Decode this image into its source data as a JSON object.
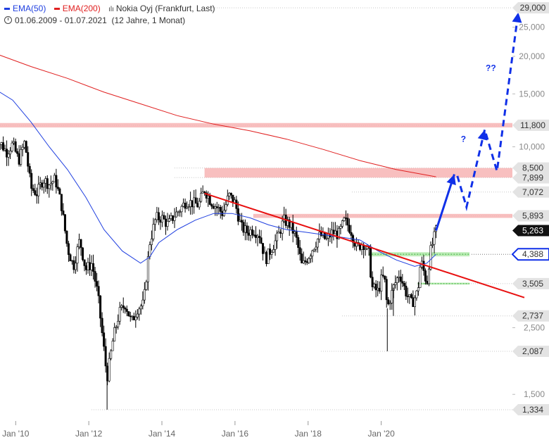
{
  "legend": {
    "ema50_label": "EMA(50)",
    "ema200_label": "EMA(200)",
    "title": "Nokia Oyj (Frankfurt, Last)",
    "range": "01.06.2009 - 01.07.2021",
    "duration": "(12 Jahre, 1 Monat)"
  },
  "colors": {
    "ema50": "#1f3fe0",
    "ema200": "#e02020",
    "resistance_zone": "#f7b4b4",
    "support_zone": "#a8e6a0",
    "trendline": "#e81010",
    "arrow": "#1030e8"
  },
  "chart_data": {
    "type": "candlestick",
    "title": "Nokia Oyj (Frankfurt, Last)",
    "y_scale": "log",
    "ylim": [
      1.25,
      29.5
    ],
    "xlim": [
      "2009-06",
      "2023-12"
    ],
    "x_ticks": [
      {
        "label": "Jan '10",
        "date": "2010-01"
      },
      {
        "label": "Jan '12",
        "date": "2012-01"
      },
      {
        "label": "Jan '14",
        "date": "2014-01"
      },
      {
        "label": "Jan '16",
        "date": "2016-01"
      },
      {
        "label": "Jan '18",
        "date": "2018-01"
      },
      {
        "label": "Jan '20",
        "date": "2020-01"
      }
    ],
    "y_ticks": [
      {
        "value": 25,
        "label": "25,000"
      },
      {
        "value": 20,
        "label": "20,000"
      },
      {
        "value": 15,
        "label": "15,000"
      },
      {
        "value": 10,
        "label": "10,000"
      },
      {
        "value": 2.5,
        "label": "2,500"
      },
      {
        "value": 1.5,
        "label": "1,500"
      }
    ],
    "price_labels": [
      {
        "value": 29.0,
        "label": "29,000",
        "style": "gray"
      },
      {
        "value": 11.8,
        "label": "11,800",
        "style": "gray"
      },
      {
        "value": 8.5,
        "label": "8,500",
        "style": "gray"
      },
      {
        "value": 7.899,
        "label": "7,899",
        "style": "gray"
      },
      {
        "value": 7.072,
        "label": "7,072",
        "style": "gray"
      },
      {
        "value": 5.893,
        "label": "5,893",
        "style": "gray"
      },
      {
        "value": 5.263,
        "label": "5,263",
        "style": "black"
      },
      {
        "value": 4.388,
        "label": "4,388",
        "style": "blue"
      },
      {
        "value": 3.505,
        "label": "3,505",
        "style": "gray"
      },
      {
        "value": 2.737,
        "label": "2,737",
        "style": "gray"
      },
      {
        "value": 2.087,
        "label": "2,087",
        "style": "gray"
      },
      {
        "value": 1.334,
        "label": "1,334",
        "style": "gray"
      }
    ],
    "price_path": [
      [
        "2009-06",
        10.0
      ],
      [
        "2009-08",
        10.3
      ],
      [
        "2009-10",
        9.6
      ],
      [
        "2009-12",
        10.2
      ],
      [
        "2010-02",
        9.0
      ],
      [
        "2010-04",
        10.4
      ],
      [
        "2010-06",
        7.3
      ],
      [
        "2010-08",
        7.0
      ],
      [
        "2010-10",
        7.8
      ],
      [
        "2010-12",
        7.5
      ],
      [
        "2011-02",
        7.8
      ],
      [
        "2011-04",
        6.4
      ],
      [
        "2011-06",
        4.6
      ],
      [
        "2011-08",
        4.0
      ],
      [
        "2011-10",
        4.9
      ],
      [
        "2011-12",
        3.9
      ],
      [
        "2012-02",
        4.1
      ],
      [
        "2012-04",
        3.2
      ],
      [
        "2012-06",
        2.1
      ],
      [
        "2012-07",
        1.7
      ],
      [
        "2012-09",
        2.3
      ],
      [
        "2012-11",
        2.8
      ],
      [
        "2013-01",
        3.0
      ],
      [
        "2013-03",
        2.6
      ],
      [
        "2013-05",
        2.9
      ],
      [
        "2013-07",
        3.0
      ],
      [
        "2013-09",
        4.8
      ],
      [
        "2013-11",
        5.8
      ],
      [
        "2014-01",
        5.8
      ],
      [
        "2014-03",
        5.5
      ],
      [
        "2014-05",
        5.9
      ],
      [
        "2014-07",
        6.2
      ],
      [
        "2014-09",
        6.6
      ],
      [
        "2014-11",
        6.5
      ],
      [
        "2015-01",
        6.4
      ],
      [
        "2015-03",
        7.2
      ],
      [
        "2015-05",
        6.6
      ],
      [
        "2015-07",
        6.3
      ],
      [
        "2015-09",
        6.0
      ],
      [
        "2015-11",
        6.9
      ],
      [
        "2016-01",
        6.5
      ],
      [
        "2016-03",
        5.4
      ],
      [
        "2016-05",
        5.2
      ],
      [
        "2016-07",
        5.3
      ],
      [
        "2016-09",
        5.1
      ],
      [
        "2016-11",
        4.2
      ],
      [
        "2017-01",
        4.6
      ],
      [
        "2017-03",
        5.0
      ],
      [
        "2017-05",
        5.7
      ],
      [
        "2017-07",
        5.5
      ],
      [
        "2017-09",
        5.0
      ],
      [
        "2017-11",
        4.0
      ],
      [
        "2018-01",
        4.3
      ],
      [
        "2018-03",
        4.7
      ],
      [
        "2018-05",
        5.1
      ],
      [
        "2018-07",
        4.9
      ],
      [
        "2018-09",
        5.2
      ],
      [
        "2018-11",
        5.1
      ],
      [
        "2019-01",
        5.7
      ],
      [
        "2019-03",
        5.3
      ],
      [
        "2019-05",
        4.6
      ],
      [
        "2019-07",
        4.8
      ],
      [
        "2019-09",
        4.4
      ],
      [
        "2019-10",
        3.4
      ],
      [
        "2019-12",
        3.3
      ],
      [
        "2020-01",
        3.6
      ],
      [
        "2020-02",
        3.7
      ],
      [
        "2020-03",
        2.9
      ],
      [
        "2020-05",
        3.4
      ],
      [
        "2020-07",
        3.8
      ],
      [
        "2020-09",
        3.3
      ],
      [
        "2020-11",
        3.0
      ],
      [
        "2021-01",
        3.3
      ],
      [
        "2021-02",
        4.2
      ],
      [
        "2021-04",
        3.5
      ],
      [
        "2021-05",
        4.4
      ],
      [
        "2021-07",
        5.263
      ]
    ],
    "ema50": [
      [
        "2009-06",
        15.6
      ],
      [
        "2009-12",
        14.3
      ],
      [
        "2010-06",
        12.1
      ],
      [
        "2010-12",
        10.0
      ],
      [
        "2011-06",
        8.4
      ],
      [
        "2011-12",
        6.8
      ],
      [
        "2012-06",
        5.3
      ],
      [
        "2012-12",
        4.5
      ],
      [
        "2013-06",
        4.1
      ],
      [
        "2013-09",
        4.3
      ],
      [
        "2013-12",
        4.8
      ],
      [
        "2014-06",
        5.3
      ],
      [
        "2014-12",
        5.7
      ],
      [
        "2015-06",
        6.0
      ],
      [
        "2015-12",
        6.0
      ],
      [
        "2016-06",
        5.8
      ],
      [
        "2016-12",
        5.5
      ],
      [
        "2017-06",
        5.3
      ],
      [
        "2017-12",
        5.2
      ],
      [
        "2018-06",
        5.1
      ],
      [
        "2018-12",
        5.0
      ],
      [
        "2019-06",
        4.9
      ],
      [
        "2019-12",
        4.5
      ],
      [
        "2020-06",
        4.2
      ],
      [
        "2020-12",
        4.0
      ],
      [
        "2021-04",
        4.1
      ],
      [
        "2021-07",
        4.388
      ]
    ],
    "ema200": [
      [
        "2009-06",
        20.5
      ],
      [
        "2010-06",
        18.5
      ],
      [
        "2011-06",
        16.9
      ],
      [
        "2012-06",
        15.2
      ],
      [
        "2013-06",
        13.9
      ],
      [
        "2014-06",
        12.7
      ],
      [
        "2015-06",
        11.9
      ],
      [
        "2016-06",
        11.3
      ],
      [
        "2017-06",
        10.6
      ],
      [
        "2018-06",
        9.8
      ],
      [
        "2019-06",
        9.0
      ],
      [
        "2020-06",
        8.4
      ],
      [
        "2021-07",
        7.95
      ]
    ],
    "lows_marked": [
      {
        "date": "2012-07",
        "value": 1.334
      },
      {
        "date": "2020-03",
        "value": 2.087
      },
      {
        "date": "2020-05",
        "value": 2.737
      }
    ],
    "zones": [
      {
        "type": "resistance",
        "from": 11.6,
        "to": 12.0,
        "start": "2009-06"
      },
      {
        "type": "resistance",
        "from": 7.899,
        "to": 8.5,
        "start": "2015-03"
      },
      {
        "type": "resistance",
        "from": 5.8,
        "to": 5.98,
        "start": "2016-07"
      },
      {
        "type": "support",
        "from": 4.32,
        "to": 4.46,
        "start": "2019-09",
        "end": "2022-06"
      },
      {
        "type": "support",
        "from": 3.48,
        "to": 3.53,
        "start": "2021-01",
        "end": "2022-06"
      }
    ],
    "trendline": {
      "start": [
        "2015-03",
        7.0
      ],
      "end": [
        "2023-12",
        3.15
      ]
    },
    "projection": {
      "solid_arrow": [
        [
          "2021-07",
          5.263
        ],
        [
          "2022-01",
          8.1
        ]
      ],
      "dashed_path": [
        [
          "2022-02",
          8.0
        ],
        [
          "2022-05",
          6.3
        ],
        [
          "2022-11",
          11.4
        ],
        [
          "2023-03",
          8.3
        ],
        [
          "2023-10",
          28.0
        ]
      ],
      "annotations": [
        {
          "text": "?",
          "date": "2022-04",
          "value": 10.4
        },
        {
          "text": "??",
          "date": "2023-01",
          "value": 17.9
        }
      ]
    }
  }
}
